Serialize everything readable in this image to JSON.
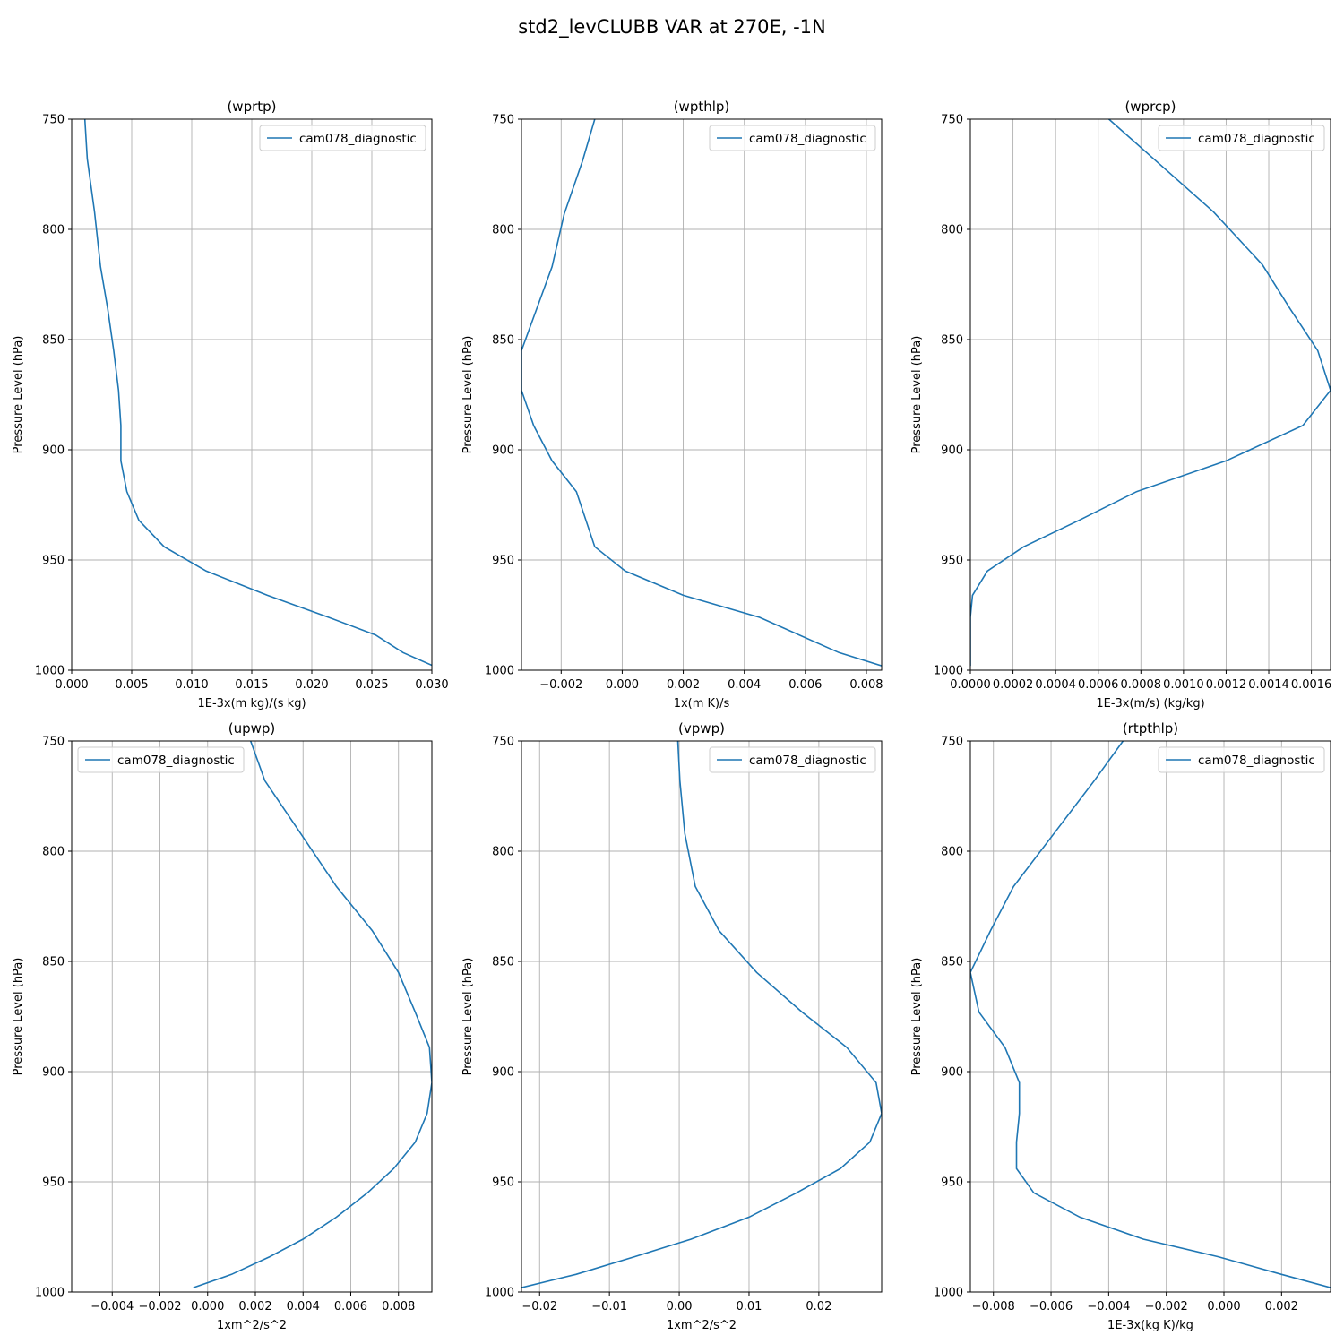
{
  "figure_title": "std2_levCLUBB VAR at 270E, -1N",
  "line_color": "#1f77b4",
  "chart_data": [
    {
      "type": "line",
      "title": "(wprtp)",
      "xlabel": "1E-3x(m kg)/(s kg)",
      "ylabel": "Pressure Level (hPa)",
      "xlim": [
        0.0,
        0.03
      ],
      "ylim": [
        1000,
        750
      ],
      "xticks": [
        0.0,
        0.005,
        0.01,
        0.015,
        0.02,
        0.025,
        0.03
      ],
      "xtick_labels": [
        "0.000",
        "0.005",
        "0.010",
        "0.015",
        "0.020",
        "0.025",
        "0.030"
      ],
      "yticks": [
        750,
        800,
        850,
        900,
        950,
        1000
      ],
      "ytick_labels": [
        "750",
        "800",
        "850",
        "900",
        "950",
        "1000"
      ],
      "grid": true,
      "legend_position": "upper right",
      "series": [
        {
          "name": "cam078_diagnostic",
          "x": [
            0.0011,
            0.0013,
            0.0019,
            0.0024,
            0.003,
            0.0035,
            0.0039,
            0.0041,
            0.0041,
            0.0046,
            0.0056,
            0.0077,
            0.0112,
            0.0163,
            0.0214,
            0.0253,
            0.0276,
            0.0301
          ],
          "y": [
            750,
            768,
            792,
            817,
            836,
            855,
            873,
            889,
            905,
            919,
            932,
            944,
            955,
            966,
            976,
            984,
            992,
            998
          ]
        }
      ]
    },
    {
      "type": "line",
      "title": "(wpthlp)",
      "xlabel": "1x(m K)/s",
      "ylabel": "Pressure Level (hPa)",
      "xlim": [
        -0.0033,
        0.0085
      ],
      "ylim": [
        1000,
        750
      ],
      "xticks": [
        -0.002,
        0.0,
        0.002,
        0.004,
        0.006,
        0.008
      ],
      "xtick_labels": [
        "−0.002",
        "0.000",
        "0.002",
        "0.004",
        "0.006",
        "0.008"
      ],
      "yticks": [
        750,
        800,
        850,
        900,
        950,
        1000
      ],
      "ytick_labels": [
        "750",
        "800",
        "850",
        "900",
        "950",
        "1000"
      ],
      "grid": true,
      "legend_position": "upper right",
      "series": [
        {
          "name": "cam078_diagnostic",
          "x": [
            -0.0009,
            -0.0013,
            -0.0019,
            -0.0023,
            -0.0028,
            -0.0033,
            -0.0033,
            -0.0029,
            -0.0023,
            -0.0015,
            -0.0009,
            0.0001,
            0.002,
            0.0045,
            0.0071,
            0.0085
          ],
          "y": [
            750,
            769,
            793,
            817,
            836,
            855,
            873,
            889,
            905,
            919,
            944,
            955,
            966,
            976,
            992,
            998
          ]
        }
      ]
    },
    {
      "type": "line",
      "title": "(wprcp)",
      "xlabel": "1E-3x(m/s) (kg/kg)",
      "ylabel": "Pressure Level (hPa)",
      "xlim": [
        0.0,
        0.00169
      ],
      "ylim": [
        1000,
        750
      ],
      "xticks": [
        0.0,
        0.0002,
        0.0004,
        0.0006,
        0.0008,
        0.001,
        0.0012,
        0.0014,
        0.0016
      ],
      "xtick_labels": [
        "0.0000",
        "0.0002",
        "0.0004",
        "0.0006",
        "0.0008",
        "0.0010",
        "0.0012",
        "0.0014",
        "0.0016"
      ],
      "yticks": [
        750,
        800,
        850,
        900,
        950,
        1000
      ],
      "ytick_labels": [
        "750",
        "800",
        "850",
        "900",
        "950",
        "1000"
      ],
      "grid": true,
      "legend_position": "upper right",
      "series": [
        {
          "name": "cam078_diagnostic",
          "x": [
            0.00065,
            0.00086,
            0.00114,
            0.00137,
            0.0015,
            0.00163,
            0.00169,
            0.00156,
            0.0012,
            0.00078,
            0.00051,
            0.00025,
            8e-05,
            1e-05,
            0.0,
            0.0,
            0.0,
            0.0
          ],
          "y": [
            750,
            768,
            792,
            816,
            836,
            855,
            873,
            889,
            905,
            919,
            932,
            944,
            955,
            966,
            976,
            984,
            992,
            998
          ]
        }
      ]
    },
    {
      "type": "line",
      "title": "(upwp)",
      "xlabel": "1xm^2/s^2",
      "ylabel": "Pressure Level (hPa)",
      "xlim": [
        -0.0057,
        0.0094
      ],
      "ylim": [
        1000,
        750
      ],
      "xticks": [
        -0.004,
        -0.002,
        0.0,
        0.002,
        0.004,
        0.006,
        0.008
      ],
      "xtick_labels": [
        "−0.004",
        "−0.002",
        "0.000",
        "0.002",
        "0.004",
        "0.006",
        "0.008"
      ],
      "yticks": [
        750,
        800,
        850,
        900,
        950,
        1000
      ],
      "ytick_labels": [
        "750",
        "800",
        "850",
        "900",
        "950",
        "1000"
      ],
      "grid": true,
      "legend_position": "upper left",
      "series": [
        {
          "name": "cam078_diagnostic",
          "x": [
            0.0018,
            0.0024,
            0.0039,
            0.0054,
            0.0069,
            0.008,
            0.0087,
            0.0093,
            0.0094,
            0.0092,
            0.0087,
            0.0078,
            0.0067,
            0.0054,
            0.004,
            0.0026,
            0.001,
            -0.0006
          ],
          "y": [
            750,
            768,
            792,
            816,
            836,
            855,
            873,
            889,
            905,
            919,
            932,
            944,
            955,
            966,
            976,
            984,
            992,
            998
          ]
        }
      ]
    },
    {
      "type": "line",
      "title": "(vpwp)",
      "xlabel": "1xm^2/s^2",
      "ylabel": "Pressure Level (hPa)",
      "xlim": [
        -0.0226,
        0.029
      ],
      "ylim": [
        1000,
        750
      ],
      "xticks": [
        -0.02,
        -0.01,
        0.0,
        0.01,
        0.02
      ],
      "xtick_labels": [
        "−0.02",
        "−0.01",
        "0.00",
        "0.01",
        "0.02"
      ],
      "yticks": [
        750,
        800,
        850,
        900,
        950,
        1000
      ],
      "ytick_labels": [
        "750",
        "800",
        "850",
        "900",
        "950",
        "1000"
      ],
      "grid": true,
      "legend_position": "upper right",
      "series": [
        {
          "name": "cam078_diagnostic",
          "x": [
            -0.0002,
            0.0001,
            0.0008,
            0.0023,
            0.0057,
            0.0111,
            0.0176,
            0.024,
            0.0282,
            0.029,
            0.0273,
            0.0231,
            0.0168,
            0.01,
            0.0017,
            -0.0064,
            -0.0148,
            -0.0226
          ],
          "y": [
            750,
            768,
            792,
            816,
            836,
            855,
            873,
            889,
            905,
            919,
            932,
            944,
            955,
            966,
            976,
            984,
            992,
            998
          ]
        }
      ]
    },
    {
      "type": "line",
      "title": "(rtpthlp)",
      "xlabel": "1E-3x(kg K)/kg",
      "ylabel": "Pressure Level (hPa)",
      "xlim": [
        -0.0088,
        0.0037
      ],
      "ylim": [
        1000,
        750
      ],
      "xticks": [
        -0.008,
        -0.006,
        -0.004,
        -0.002,
        0.0,
        0.002
      ],
      "xtick_labels": [
        "−0.008",
        "−0.006",
        "−0.004",
        "−0.002",
        "0.000",
        "0.002"
      ],
      "yticks": [
        750,
        800,
        850,
        900,
        950,
        1000
      ],
      "ytick_labels": [
        "750",
        "800",
        "850",
        "900",
        "950",
        "1000"
      ],
      "grid": true,
      "legend_position": "upper right",
      "series": [
        {
          "name": "cam078_diagnostic",
          "x": [
            -0.0035,
            -0.0045,
            -0.0059,
            -0.0073,
            -0.0081,
            -0.0088,
            -0.0085,
            -0.0076,
            -0.0071,
            -0.0071,
            -0.0072,
            -0.0072,
            -0.0066,
            -0.005,
            -0.0028,
            -0.0002,
            0.002,
            0.0037
          ],
          "y": [
            750,
            768,
            792,
            816,
            836,
            855,
            873,
            889,
            905,
            919,
            932,
            944,
            955,
            966,
            976,
            984,
            992,
            998
          ]
        }
      ]
    }
  ]
}
